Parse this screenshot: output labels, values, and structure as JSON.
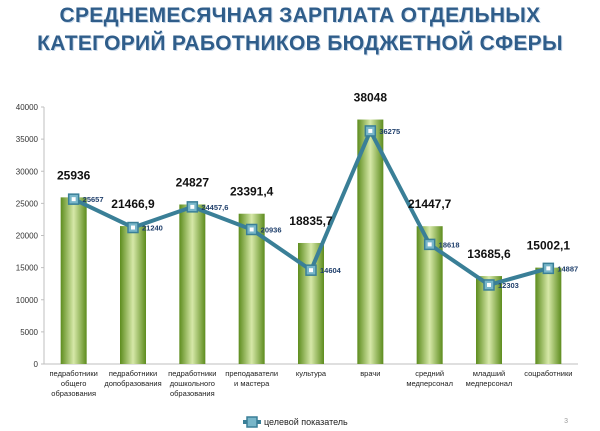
{
  "title_line1": "СРЕДНЕМЕСЯЧНАЯ ЗАРПЛАТА ОТДЕЛЬНЫХ",
  "title_line2": "КАТЕГОРИЙ РАБОТНИКОВ БЮДЖЕТНОЙ СФЕРЫ",
  "page_number": "3",
  "colors": {
    "bar_light": "#d6e8a8",
    "bar_dark": "#5d8c1e",
    "line": "#3a7f97",
    "marker_fill": "#78b6c9",
    "line_label": "#1f3f6b",
    "title": "#2f5d8a"
  },
  "chart_data": {
    "type": "bar",
    "categories": [
      [
        "педработники",
        "общего",
        "образования"
      ],
      [
        "педработники",
        "допобразования"
      ],
      [
        "педработники",
        "дошкольного",
        "образования"
      ],
      [
        "преподаватели",
        "и мастера"
      ],
      [
        "культура"
      ],
      [
        "врачи"
      ],
      [
        "средний",
        "медперсонал"
      ],
      [
        "младший",
        "медперсонал"
      ],
      [
        "соцработники"
      ]
    ],
    "series": [
      {
        "values": [
          25936,
          21466.9,
          24827,
          23391.4,
          18835.7,
          38048,
          21447.7,
          13685.6,
          15002.1
        ],
        "labels": [
          "25936",
          "21466,9",
          "24827",
          "23391,4",
          "18835,7",
          "38048",
          "21447,7",
          "13685,6",
          "15002,1"
        ]
      },
      {
        "name": "целевой показатель",
        "type": "line",
        "values": [
          25657,
          21240,
          24457.6,
          20936,
          14604,
          36275,
          18618,
          12303,
          14887
        ],
        "labels": [
          "25657",
          "21240",
          "24457,6",
          "20936",
          "14604",
          "36275",
          "18618",
          "12303",
          "14887"
        ]
      }
    ],
    "yticks": [
      "0",
      "5000",
      "10000",
      "15000",
      "20000",
      "25000",
      "30000",
      "35000",
      "40000"
    ],
    "ylim": [
      0,
      40000
    ],
    "legend": "bottom",
    "grid": false
  }
}
